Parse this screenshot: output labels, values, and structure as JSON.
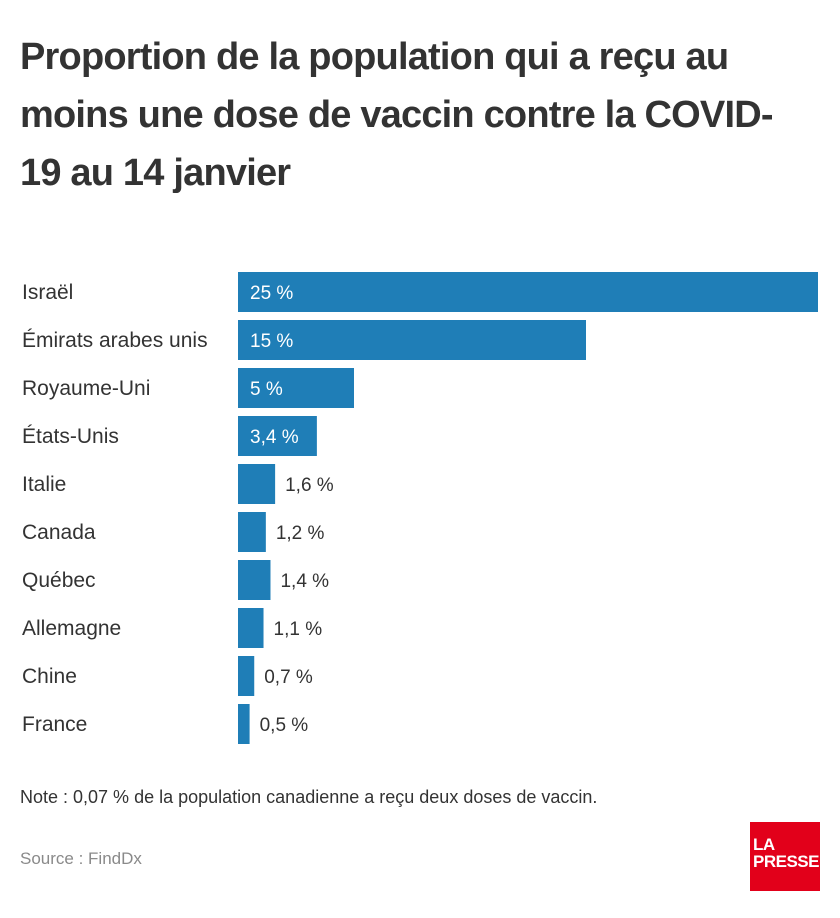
{
  "title": "Proportion de la population qui a reçu au moins une dose de vaccin contre la COVID-19 au 14 janvier",
  "chart_data": {
    "type": "bar",
    "orientation": "horizontal",
    "title": "Proportion de la population qui a reçu au moins une dose de vaccin contre la COVID-19 au 14 janvier",
    "xlabel": "",
    "ylabel": "",
    "unit": "%",
    "xlim": [
      0,
      25
    ],
    "grid": false,
    "legend": "none",
    "bar_color": "#1f7eb7",
    "categories": [
      "Israël",
      "Émirats arabes unis",
      "Royaume-Uni",
      "États-Unis",
      "Italie",
      "Canada",
      "Québec",
      "Allemagne",
      "Chine",
      "France"
    ],
    "values": [
      25,
      15,
      5,
      3.4,
      1.6,
      1.2,
      1.4,
      1.1,
      0.7,
      0.5
    ],
    "value_labels": [
      "25 %",
      "15 %",
      "5 %",
      "3,4 %",
      "1,6 %",
      "1,2 %",
      "1,4 %",
      "1,1 %",
      "0,7 %",
      "0,5 %"
    ]
  },
  "note": "Note : 0,07 % de la population canadienne a reçu deux doses de vaccin.",
  "source": "Source : FindDx",
  "logo": {
    "line1": "LA",
    "line2": "PRESSE",
    "color": "#e2001a"
  }
}
